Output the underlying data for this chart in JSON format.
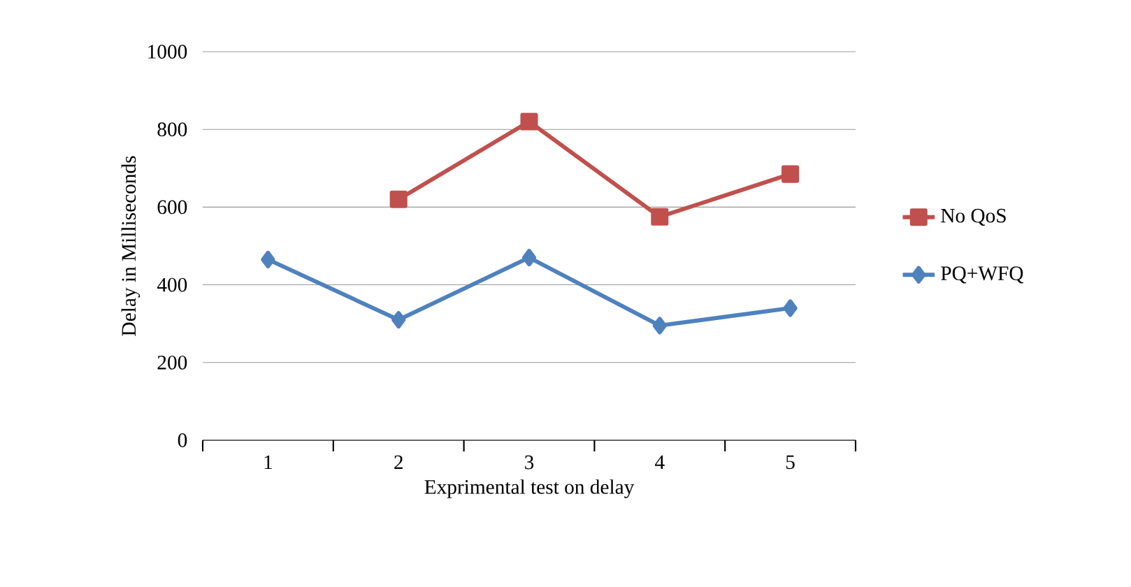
{
  "chart_data": {
    "type": "line",
    "xlabel": "Exprimental test on delay",
    "ylabel": "Delay in Milliseconds",
    "categories": [
      "1",
      "2",
      "3",
      "4",
      "5"
    ],
    "series": [
      {
        "name": "No QoS",
        "color": "#c0504d",
        "marker": "square",
        "values": [
          null,
          620,
          820,
          575,
          685
        ]
      },
      {
        "name": "PQ+WFQ",
        "color": "#4f81bd",
        "marker": "diamond",
        "values": [
          465,
          310,
          470,
          295,
          340
        ]
      }
    ],
    "ylim": [
      0,
      1000
    ],
    "yticks": [
      0,
      200,
      400,
      600,
      800,
      1000
    ],
    "grid": "y",
    "legend": "right",
    "line_style": "solid"
  }
}
